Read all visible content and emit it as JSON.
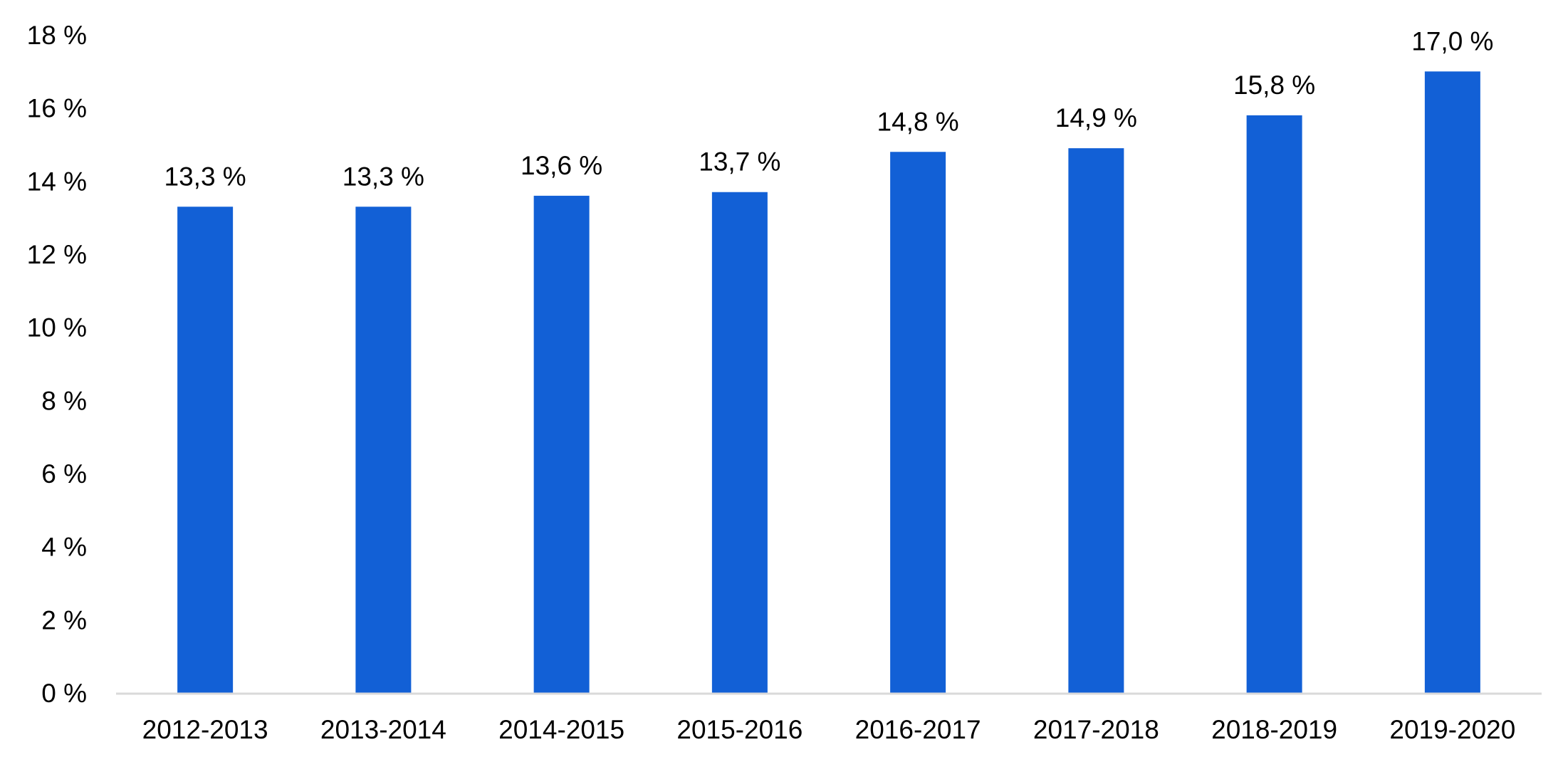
{
  "chart_data": {
    "type": "bar",
    "categories": [
      "2012-2013",
      "2013-2014",
      "2014-2015",
      "2015-2016",
      "2016-2017",
      "2017-2018",
      "2018-2019",
      "2019-2020"
    ],
    "values": [
      13.3,
      13.3,
      13.6,
      13.7,
      14.8,
      14.9,
      15.8,
      17.0
    ],
    "data_labels": [
      "13,3 %",
      "13,3 %",
      "13,6 %",
      "13,7 %",
      "14,8 %",
      "14,9 %",
      "15,8 %",
      "17,0 %"
    ],
    "y_ticks": [
      0,
      2,
      4,
      6,
      8,
      10,
      12,
      14,
      16,
      18
    ],
    "y_tick_labels": [
      "0 %",
      "2 %",
      "4 %",
      "6 %",
      "8 %",
      "10 %",
      "12 %",
      "14 %",
      "16 %",
      "18 %"
    ],
    "ylim": [
      0,
      18
    ],
    "grid": false,
    "legend": "none",
    "title": "",
    "xlabel": "",
    "ylabel": "",
    "bar_color": "#1260D6",
    "axis_color": "#D9D9D9",
    "text_color": "#000000"
  }
}
